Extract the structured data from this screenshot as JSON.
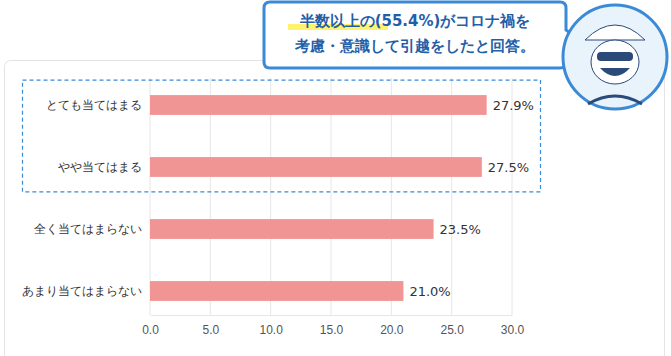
{
  "chart_data": {
    "type": "bar",
    "orientation": "horizontal",
    "annotation": [
      "半数以上の(55.4%)がコロナ禍を",
      "考慮・意識して引越をしたと回答。"
    ],
    "categories": [
      "とても当てはまる",
      "やや当てはまる",
      "全く当てはまらない",
      "あまり当てはまらない"
    ],
    "values": [
      27.9,
      27.5,
      23.5,
      21.0
    ],
    "value_labels": [
      "27.9%",
      "27.5%",
      "23.5%",
      "21.0%"
    ],
    "color": "#f19494",
    "xlim": [
      0,
      30
    ],
    "xticks": [
      {
        "value": 0,
        "label": "0.0"
      },
      {
        "value": 5,
        "label": "5.0"
      },
      {
        "value": 10,
        "label": "10.0"
      },
      {
        "value": 15,
        "label": "15.0"
      },
      {
        "value": 20,
        "label": "20.0"
      },
      {
        "value": 25,
        "label": "25.0"
      },
      {
        "value": 30,
        "label": "30.0"
      }
    ],
    "grid": true,
    "data_labels": true
  }
}
